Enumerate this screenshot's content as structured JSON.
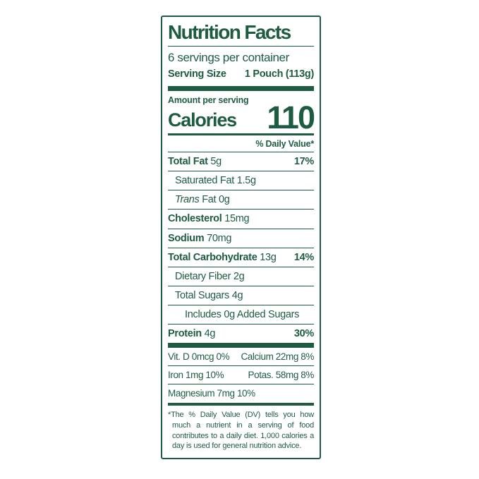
{
  "label": {
    "title": "Nutrition Facts",
    "servings_per_container": "6 servings per container",
    "serving_size_label": "Serving Size",
    "serving_size_value": "1 Pouch (113g)",
    "amount_per_serving": "Amount per serving",
    "calories_label": "Calories",
    "calories_value": "110",
    "daily_value_header": "% Daily Value*",
    "nutrient_rows": [
      {
        "name": "Total Fat",
        "amount": "5g",
        "dv": "17%",
        "bold": true,
        "indent": 0
      },
      {
        "name": "Saturated Fat",
        "amount": "1.5g",
        "dv": "",
        "bold": false,
        "indent": 1
      },
      {
        "italic_prefix": "Trans",
        "name": "Fat",
        "amount": "0g",
        "dv": "",
        "bold": false,
        "indent": 1
      },
      {
        "name": "Cholesterol",
        "amount": "15mg",
        "dv": "",
        "bold": true,
        "indent": 0
      },
      {
        "name": "Sodium",
        "amount": "70mg",
        "dv": "",
        "bold": true,
        "indent": 0
      },
      {
        "name": "Total Carbohydrate",
        "amount": "13g",
        "dv": "14%",
        "bold": true,
        "indent": 0
      },
      {
        "name": "Dietary Fiber",
        "amount": "2g",
        "dv": "",
        "bold": false,
        "indent": 1
      },
      {
        "name": "Total Sugars",
        "amount": "4g",
        "dv": "",
        "bold": false,
        "indent": 1
      },
      {
        "name": "Includes 0g Added Sugars",
        "amount": "",
        "dv": "",
        "bold": false,
        "indent": 2
      },
      {
        "name": "Protein",
        "amount": "4g",
        "dv": "30%",
        "bold": true,
        "indent": 0
      }
    ],
    "micronutrient_rows": [
      {
        "left": "Vit. D 0mcg 0%",
        "right": "Calcium 22mg 8%"
      },
      {
        "left": "Iron 1mg 10%",
        "right": "Potas. 58mg 8%"
      },
      {
        "left": "Magnesium 7mg 10%",
        "right": ""
      }
    ],
    "footnote": "*The % Daily Value (DV) tells you how much a nutrient in a serving of food contributes to a daily diet. 1,000 calories a day is used for general nutrition advice.",
    "colors": {
      "green": "#1e5c42",
      "background": "#ffffff"
    }
  }
}
